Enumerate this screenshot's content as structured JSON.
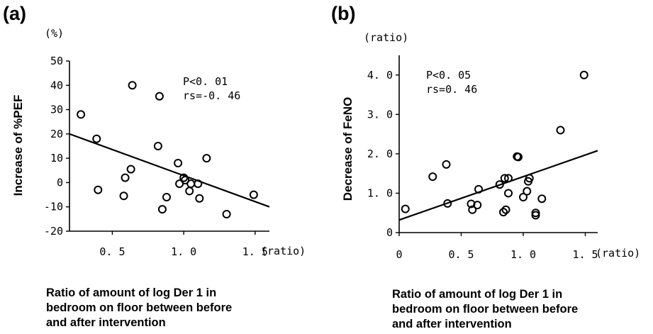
{
  "chart_data": [
    {
      "type": "scatter",
      "panel": "(a)",
      "y_unit": "(%)",
      "x_unit": "(ratio)",
      "ylabel": "Increase of %PEF",
      "xlabel": [
        "Ratio of amount of log Der 1 in",
        "bedroom on floor between before",
        "and after intervention"
      ],
      "xlim": [
        0.2,
        1.6
      ],
      "ylim": [
        -20,
        50
      ],
      "x_ticks": [
        0.5,
        1.0,
        1.5
      ],
      "x_tick_labels": [
        "0. 5",
        "1. 0",
        "1. 5"
      ],
      "y_ticks": [
        -20,
        -10,
        0,
        10,
        20,
        30,
        40,
        50
      ],
      "y_tick_labels": [
        "-20",
        "-10",
        "0",
        "10",
        "20",
        "30",
        "40",
        "50"
      ],
      "stats": [
        "P<0. 01",
        "rs=-0. 46"
      ],
      "regression": {
        "x": [
          0.2,
          1.6
        ],
        "y": [
          20.0,
          -10.0
        ]
      },
      "points": [
        {
          "x": 0.28,
          "y": 28
        },
        {
          "x": 0.39,
          "y": 18
        },
        {
          "x": 0.4,
          "y": -3
        },
        {
          "x": 0.58,
          "y": -5.5
        },
        {
          "x": 0.59,
          "y": 2
        },
        {
          "x": 0.63,
          "y": 5.5
        },
        {
          "x": 0.64,
          "y": 40
        },
        {
          "x": 0.82,
          "y": 15
        },
        {
          "x": 0.83,
          "y": 35.5
        },
        {
          "x": 0.85,
          "y": -11
        },
        {
          "x": 0.88,
          "y": -6
        },
        {
          "x": 0.96,
          "y": 8
        },
        {
          "x": 0.97,
          "y": -0.5
        },
        {
          "x": 1.0,
          "y": 2
        },
        {
          "x": 1.01,
          "y": 1
        },
        {
          "x": 1.04,
          "y": -3.5
        },
        {
          "x": 1.05,
          "y": -0.5
        },
        {
          "x": 1.1,
          "y": -0.5
        },
        {
          "x": 1.11,
          "y": -6.5
        },
        {
          "x": 1.16,
          "y": 10
        },
        {
          "x": 1.3,
          "y": -13
        },
        {
          "x": 1.49,
          "y": -5
        }
      ]
    },
    {
      "type": "scatter",
      "panel": "(b)",
      "y_unit": "(ratio)",
      "x_unit": "(ratio)",
      "ylabel": "Decrease of FeNO",
      "xlabel": [
        "Ratio of amount of log Der 1 in",
        "bedroom on floor between before",
        "and after intervention"
      ],
      "xlim": [
        0.0,
        1.6
      ],
      "ylim": [
        0.0,
        4.5
      ],
      "x_ticks": [
        0,
        0.5,
        1.0,
        1.5
      ],
      "x_tick_labels": [
        "0",
        "0. 5",
        "1. 0",
        "1. 5"
      ],
      "y_ticks": [
        0,
        1.0,
        2.0,
        3.0,
        4.0
      ],
      "y_tick_labels": [
        "0",
        "1. 0",
        "2. 0",
        "3. 0",
        "4. 0"
      ],
      "stats": [
        "P<0. 05",
        "rs=0. 46"
      ],
      "regression": {
        "x": [
          0.0,
          1.6
        ],
        "y": [
          0.32,
          2.08
        ]
      },
      "points": [
        {
          "x": 0.05,
          "y": 0.6
        },
        {
          "x": 0.27,
          "y": 1.42
        },
        {
          "x": 0.38,
          "y": 1.73
        },
        {
          "x": 0.39,
          "y": 0.74
        },
        {
          "x": 0.58,
          "y": 0.73
        },
        {
          "x": 0.59,
          "y": 0.58
        },
        {
          "x": 0.63,
          "y": 0.7
        },
        {
          "x": 0.64,
          "y": 1.1
        },
        {
          "x": 0.81,
          "y": 1.22
        },
        {
          "x": 0.84,
          "y": 0.52
        },
        {
          "x": 0.85,
          "y": 1.38
        },
        {
          "x": 0.86,
          "y": 0.58
        },
        {
          "x": 0.88,
          "y": 1.38
        },
        {
          "x": 0.88,
          "y": 1.0
        },
        {
          "x": 0.95,
          "y": 1.93
        },
        {
          "x": 0.96,
          "y": 1.92
        },
        {
          "x": 1.0,
          "y": 0.9
        },
        {
          "x": 1.03,
          "y": 1.05
        },
        {
          "x": 1.04,
          "y": 1.3
        },
        {
          "x": 1.05,
          "y": 1.38
        },
        {
          "x": 1.1,
          "y": 0.5
        },
        {
          "x": 1.1,
          "y": 0.44
        },
        {
          "x": 1.15,
          "y": 0.86
        },
        {
          "x": 1.3,
          "y": 2.6
        },
        {
          "x": 1.49,
          "y": 4.0
        }
      ]
    }
  ]
}
